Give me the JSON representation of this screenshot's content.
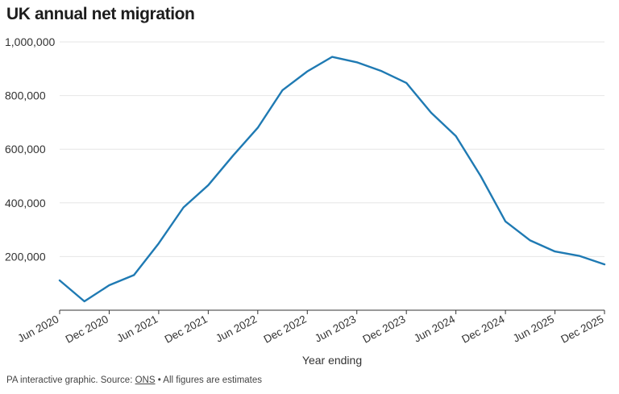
{
  "chart_data": {
    "type": "line",
    "title": "UK annual net migration",
    "xlabel": "Year ending",
    "ylabel": "",
    "ylim": [
      0,
      1000000
    ],
    "yticks": [
      200000,
      400000,
      600000,
      800000,
      1000000
    ],
    "ytick_labels": [
      "200,000",
      "400,000",
      "600,000",
      "800,000",
      "1,000,000"
    ],
    "x_tick_labels": [
      "Jun 2020",
      "Dec 2020",
      "Jun 2021",
      "Dec 2021",
      "Jun 2022",
      "Dec 2022",
      "Jun 2023",
      "Dec 2023",
      "Jun 2024",
      "Dec 2024",
      "Jun 2025",
      "Dec 2025"
    ],
    "grid": true,
    "line_color": "#1f7ab3",
    "series": [
      {
        "x": [
          "Jun 2020",
          "Sep 2020",
          "Dec 2020",
          "Mar 2021",
          "Jun 2021",
          "Sep 2021",
          "Dec 2021",
          "Mar 2022",
          "Jun 2022",
          "Sep 2022",
          "Dec 2022",
          "Mar 2023",
          "Jun 2023",
          "Sep 2023",
          "Dec 2023",
          "Mar 2024",
          "Jun 2024",
          "Sep 2024",
          "Dec 2024",
          "Mar 2025",
          "Jun 2025",
          "Sep 2025",
          "Dec 2025"
        ],
        "values": [
          111000,
          33000,
          93000,
          131000,
          249000,
          383000,
          466000,
          576000,
          680000,
          820000,
          890000,
          944000,
          924000,
          891000,
          847000,
          736000,
          649000,
          500000,
          331000,
          260000,
          219000,
          202000,
          171000
        ]
      }
    ]
  },
  "footer": {
    "prefix": "PA interactive graphic. Source: ",
    "link_text": "ONS",
    "suffix": " • All figures are estimates"
  }
}
